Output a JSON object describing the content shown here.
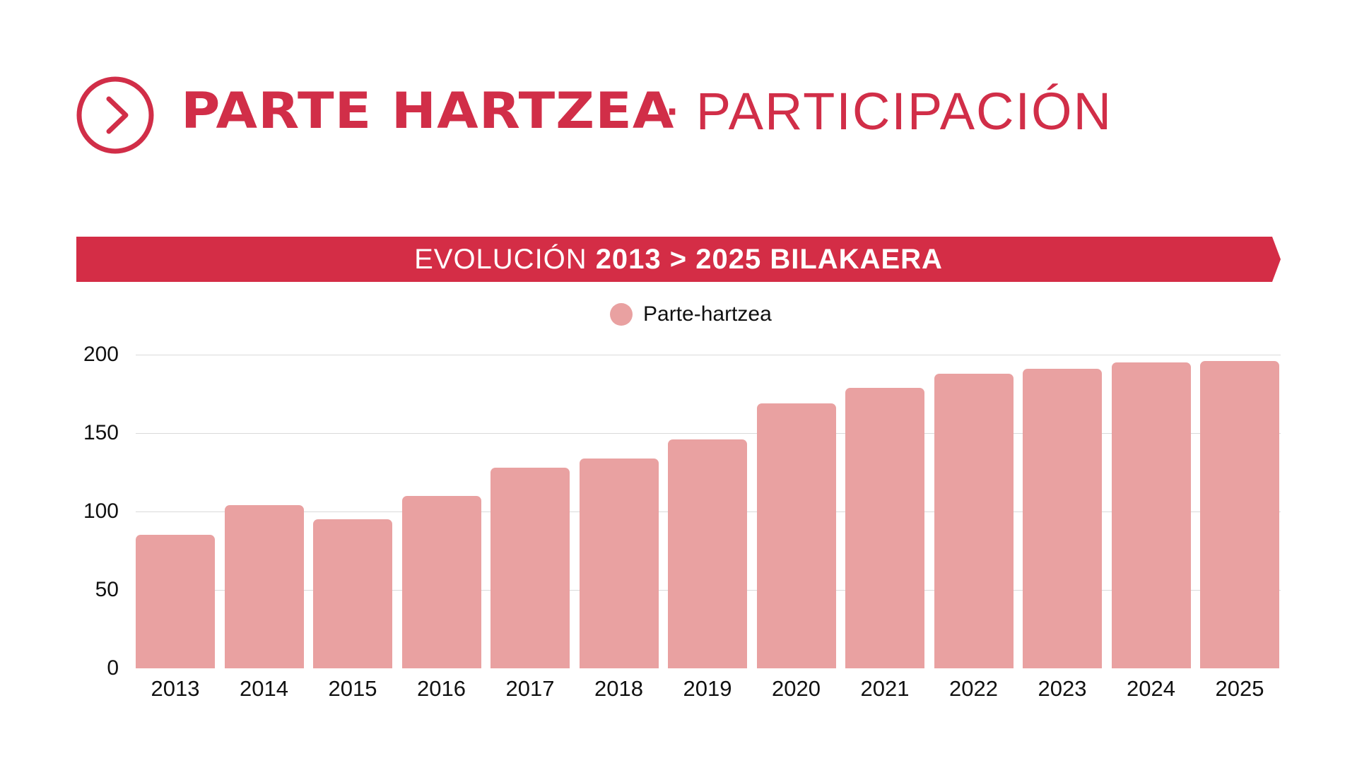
{
  "header": {
    "title_bold": "PARTE HARTZEA",
    "separator": "·",
    "title_light": "PARTICIPACIÓN",
    "icon": "chevron-right-circle-icon"
  },
  "banner": {
    "light": "EVOLUCIÓN",
    "bold": "2013 > 2025 BILAKAERA"
  },
  "colors": {
    "brand_red": "#d42d46",
    "bar": "#e9a1a1",
    "gridline": "#dadada"
  },
  "chart_data": {
    "type": "bar",
    "title": "EVOLUCIÓN 2013 > 2025 BILAKAERA",
    "xlabel": "",
    "ylabel": "",
    "categories": [
      "2013",
      "2014",
      "2015",
      "2016",
      "2017",
      "2018",
      "2019",
      "2020",
      "2021",
      "2022",
      "2023",
      "2024",
      "2025"
    ],
    "series": [
      {
        "name": "Parte-hartzea",
        "values": [
          85,
          104,
          95,
          110,
          128,
          134,
          146,
          169,
          179,
          188,
          191,
          195,
          196
        ]
      }
    ],
    "ylim": [
      0,
      200
    ],
    "yticks": [
      "0",
      "50",
      "100",
      "150",
      "200"
    ],
    "grid": true,
    "legend_position": "top-center"
  }
}
